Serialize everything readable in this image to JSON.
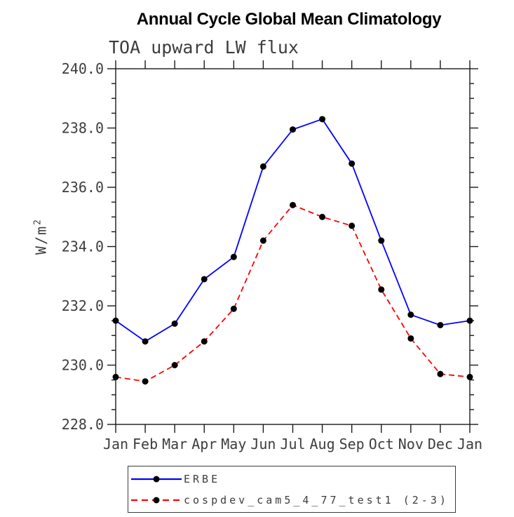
{
  "chart_data": {
    "type": "line",
    "title": "Annual Cycle Global Mean Climatology",
    "subtitle": "TOA upward LW flux",
    "ylabel": "W/m²",
    "ylabel_base": "W/m",
    "ylabel_exponent": "2",
    "categories": [
      "Jan",
      "Feb",
      "Mar",
      "Apr",
      "May",
      "Jun",
      "Jul",
      "Aug",
      "Sep",
      "Oct",
      "Nov",
      "Dec",
      "Jan"
    ],
    "ylim": [
      228.0,
      240.0
    ],
    "ytick_step": 2.0,
    "ytick_minor_step": 0.5,
    "ytick_label_format": "one_decimal",
    "grid": false,
    "legend_position": "bottom",
    "series": [
      {
        "name": "ERBE",
        "color": "#0000ff",
        "line_style": "solid",
        "marker": "filled-circle",
        "marker_color": "#000000",
        "values": [
          231.5,
          230.8,
          231.4,
          232.9,
          233.65,
          236.7,
          237.95,
          238.3,
          236.8,
          234.2,
          231.7,
          231.35,
          231.5
        ]
      },
      {
        "name": "cospdev_cam5_4_77_test1 (2-3)",
        "color": "#ff0000",
        "line_style": "dashed",
        "marker": "filled-circle",
        "marker_color": "#000000",
        "values": [
          229.6,
          229.45,
          230.0,
          230.8,
          231.9,
          234.2,
          235.4,
          235.0,
          234.7,
          232.55,
          230.9,
          229.7,
          229.6
        ]
      }
    ]
  },
  "colors": {
    "background": "#ffffff",
    "axis": "#1a1a1a",
    "tick_text": "#3d3d3d",
    "title_text": "#000000"
  }
}
